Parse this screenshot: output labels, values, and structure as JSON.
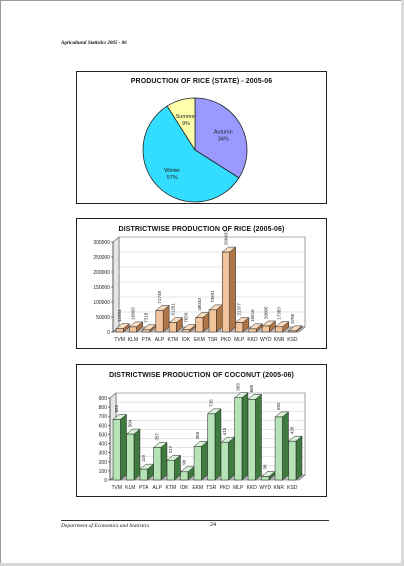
{
  "document": {
    "running_head": "Agricultural Statistics 2005 - 06",
    "footer_department": "Department of Economics and Statistics",
    "page_number": "24"
  },
  "chart_data": [
    {
      "type": "pie",
      "title": "PRODUCTION OF RICE (STATE) - 2005-06",
      "slices": [
        {
          "label": "Autumn",
          "value": 34,
          "pct_label": "34%",
          "color": "#9999ff"
        },
        {
          "label": "Winter",
          "value": 57,
          "pct_label": "57%",
          "color": "#33ddff"
        },
        {
          "label": "Summer",
          "value": 9,
          "pct_label": "9%",
          "color": "#ffffaa"
        }
      ]
    },
    {
      "type": "bar",
      "style": "3d",
      "title": "DISTRICTWISE PRODUCTION OF RICE (2005-06)",
      "categories": [
        "TVM",
        "KLM",
        "PTA",
        "ALP",
        "KTM",
        "IDK",
        "EKM",
        "TSR",
        "PKD",
        "MLP",
        "KKD",
        "WYD",
        "KNR",
        "KSD"
      ],
      "values": [
        11034,
        16903,
        7318,
        71748,
        31261,
        7650,
        48033,
        73691,
        266433,
        31377,
        10516,
        20005,
        17383,
        3786
      ],
      "value_labels": [
        "11034",
        "16903",
        "7318",
        "71748",
        "31261",
        "7650",
        "48033",
        "73691",
        "266433",
        "31377",
        "10516",
        "20005",
        "17383",
        "3786"
      ],
      "ylim": [
        0,
        300000
      ],
      "yticks": [
        0,
        50000,
        100000,
        150000,
        200000,
        250000,
        300000
      ],
      "colors": {
        "front": "#f0c39a",
        "side": "#b07545",
        "top": "#f7dcc0",
        "wall": "#ffffff",
        "floor": "#bbbbbb"
      }
    },
    {
      "type": "bar",
      "style": "3d",
      "title": "DISTRICTWISE PRODUCTION OF COCONUT (2005-06)",
      "categories": [
        "TVM",
        "KLM",
        "PTA",
        "ALP",
        "KTM",
        "IDK",
        "EKM",
        "TSR",
        "PKD",
        "MLP",
        "KKD",
        "WYD",
        "KNR",
        "KSD"
      ],
      "values": [
        665,
        504,
        119,
        357,
        217,
        90,
        369,
        726,
        415,
        903,
        885,
        38,
        692,
        426
      ],
      "value_labels": [
        "665",
        "504",
        "119",
        "357",
        "217",
        "90",
        "369",
        "726",
        "415",
        "903",
        "885",
        "38",
        "692",
        "426"
      ],
      "ylim": [
        0,
        900
      ],
      "yticks": [
        0,
        100,
        200,
        300,
        400,
        500,
        600,
        700,
        800,
        900
      ],
      "colors": {
        "front": "#b5e3b5",
        "side": "#3f7a3f",
        "top": "#d9f2d9",
        "wall": "#ffffff",
        "floor": "#bbbbbb"
      }
    }
  ]
}
